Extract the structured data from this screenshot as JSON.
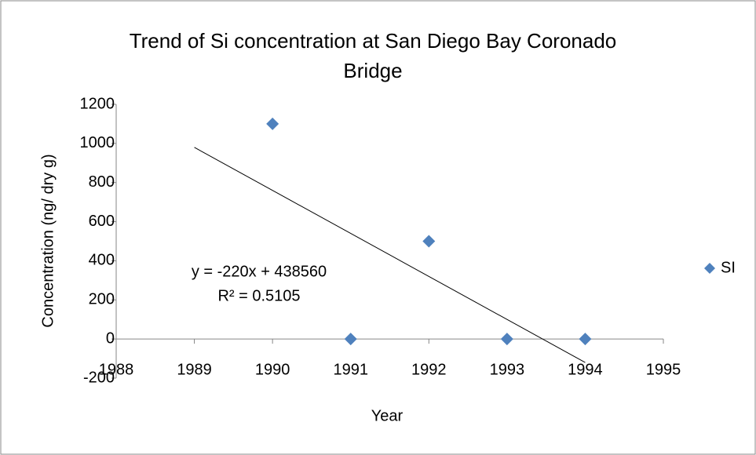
{
  "chart_data": {
    "type": "scatter",
    "title": [
      "Trend of Si concentration at San Diego Bay Coronado",
      "Bridge"
    ],
    "x_label": "Year",
    "y_label": "Concentration (ng/ dry g)",
    "x": [
      1990,
      1991,
      1992,
      1993,
      1994
    ],
    "series": [
      {
        "name": "SI",
        "color": "#4f81bd",
        "values": [
          1100,
          0,
          500,
          0,
          0
        ]
      }
    ],
    "trendline": {
      "x": [
        1989,
        1994
      ],
      "values": [
        980,
        -120
      ],
      "color": "#000000"
    },
    "annotations": [
      "y = -220x + 438560",
      "R² = 0.5105"
    ],
    "xlim": [
      1988,
      1995
    ],
    "xticks": [
      1988,
      1989,
      1990,
      1991,
      1992,
      1993,
      1994,
      1995
    ],
    "ylim": [
      -200,
      1200
    ],
    "yticks": [
      -200,
      0,
      200,
      400,
      600,
      800,
      1000,
      1200
    ],
    "legend": "right"
  }
}
